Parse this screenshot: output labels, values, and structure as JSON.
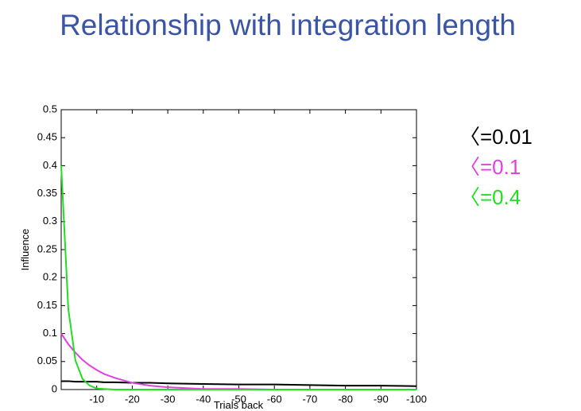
{
  "chart_data": {
    "type": "line",
    "title": "Relationship with integration length",
    "xlabel": "Trials back",
    "ylabel": "Influence",
    "x": [
      0,
      -2,
      -4,
      -6,
      -8,
      -10,
      -12,
      -15,
      -20,
      -25,
      -30,
      -40,
      -50,
      -60,
      -70,
      -80,
      -90,
      -100
    ],
    "series": [
      {
        "name": "〈=0.01",
        "color": "#000000",
        "values": [
          0.015,
          0.015,
          0.014,
          0.014,
          0.014,
          0.014,
          0.013,
          0.013,
          0.012,
          0.012,
          0.011,
          0.01,
          0.009,
          0.009,
          0.008,
          0.007,
          0.007,
          0.006
        ]
      },
      {
        "name": "〈=0.1",
        "color": "#e040e0",
        "values": [
          0.1,
          0.081,
          0.066,
          0.053,
          0.043,
          0.035,
          0.028,
          0.021,
          0.012,
          0.007,
          0.004,
          0.001,
          0.001,
          0,
          0,
          0,
          0,
          0
        ]
      },
      {
        "name": "〈=0.4",
        "color": "#22dd22",
        "values": [
          0.4,
          0.144,
          0.052,
          0.019,
          0.007,
          0.002,
          0.001,
          0,
          0,
          0,
          0,
          0,
          0,
          0,
          0,
          0,
          0,
          0
        ]
      }
    ],
    "xlim": [
      0,
      -100
    ],
    "xticks": [
      -10,
      -20,
      -30,
      -40,
      -50,
      -60,
      -70,
      -80,
      -90,
      -100
    ],
    "ylim": [
      0,
      0.5
    ],
    "yticks": [
      0,
      0.05,
      0.1,
      0.15,
      0.2,
      0.25,
      0.3,
      0.35,
      0.4,
      0.45,
      0.5
    ],
    "legend": "right"
  }
}
